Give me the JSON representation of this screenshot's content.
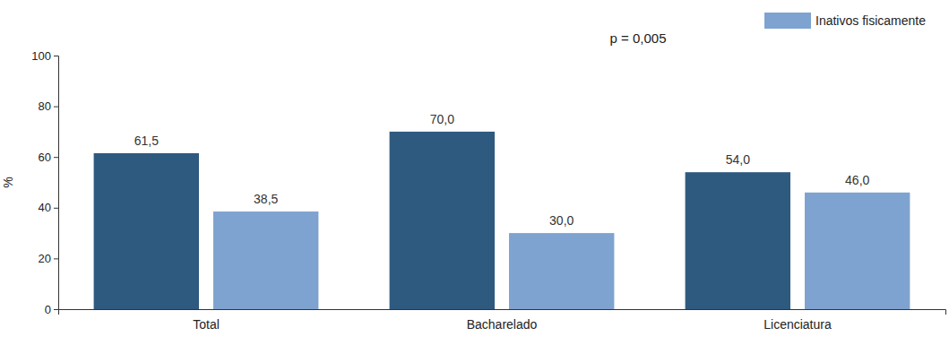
{
  "chart_data": {
    "type": "bar",
    "categories": [
      "Total",
      "Bacharelado",
      "Licenciatura"
    ],
    "series": [
      {
        "color": "#2f5a80",
        "values": [
          61.5,
          70.0,
          54.0
        ],
        "value_labels": [
          "61,5",
          "70,0",
          "54,0"
        ]
      },
      {
        "name": "Inativos fisicamente",
        "color": "#7fa3d0",
        "values": [
          38.5,
          30.0,
          46.0
        ],
        "value_labels": [
          "38,5",
          "30,0",
          "46,0"
        ]
      }
    ],
    "y_label": "%",
    "annotation": "p = 0,005",
    "ylim": [
      0,
      100
    ],
    "yticks": [
      0,
      20,
      40,
      60,
      80,
      100
    ],
    "data_labels": true,
    "grid": false,
    "legend": "upper right"
  }
}
